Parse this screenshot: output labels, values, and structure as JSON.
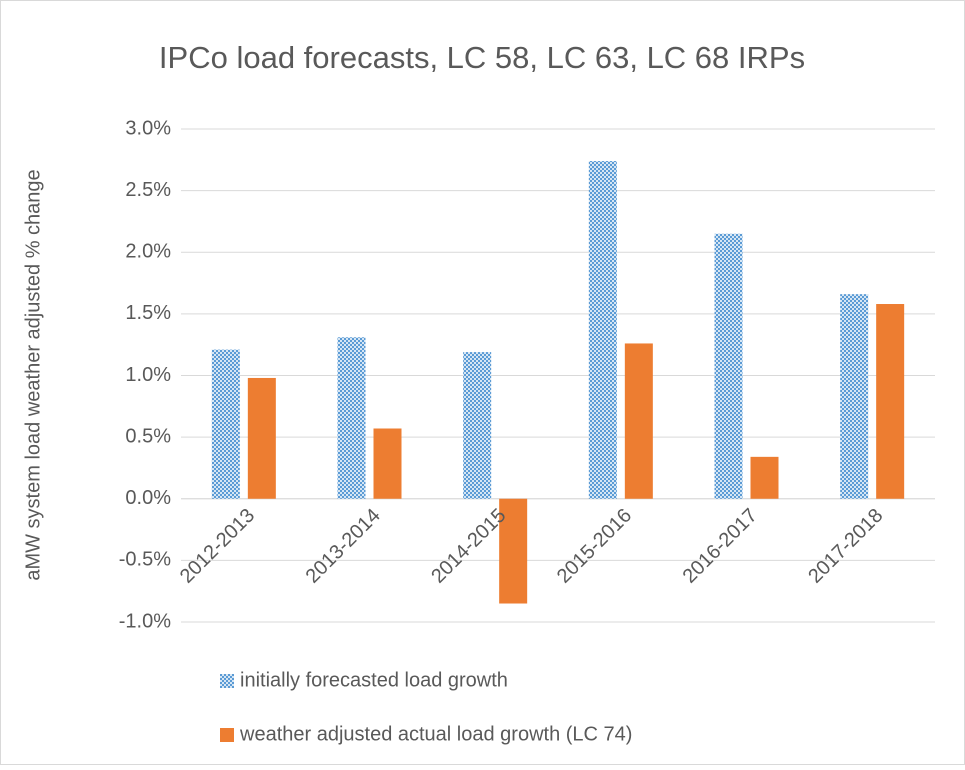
{
  "chart_data": {
    "type": "bar",
    "title": "IPCo load forecasts, LC 58, LC 63, LC 68 IRPs",
    "y_label": "aMW system load weather adjusted % change",
    "categories": [
      "2012-2013",
      "2013-2014",
      "2014-2015",
      "2015-2016",
      "2016-2017",
      "2017-2018"
    ],
    "series": [
      {
        "name": "initially forecasted load growth",
        "color": "#5b9bd5",
        "fill_pattern": "dotted",
        "values": [
          1.21,
          1.31,
          1.19,
          2.74,
          2.15,
          1.66
        ]
      },
      {
        "name": "weather adjusted actual load growth (LC 74)",
        "color": "#ed7d31",
        "values": [
          0.98,
          0.57,
          -0.85,
          1.26,
          0.34,
          1.58
        ]
      }
    ],
    "ylim": [
      -1.0,
      3.0
    ],
    "yticks": [
      {
        "value": -1.0,
        "label": "-1.0%"
      },
      {
        "value": -0.5,
        "label": "-0.5%"
      },
      {
        "value": 0.0,
        "label": "0.0%"
      },
      {
        "value": 0.5,
        "label": "0.5%"
      },
      {
        "value": 1.0,
        "label": "1.0%"
      },
      {
        "value": 1.5,
        "label": "1.5%"
      },
      {
        "value": 2.0,
        "label": "2.0%"
      },
      {
        "value": 2.5,
        "label": "2.5%"
      },
      {
        "value": 3.0,
        "label": "3.0%"
      }
    ],
    "grid": true,
    "legend": "bottom"
  }
}
